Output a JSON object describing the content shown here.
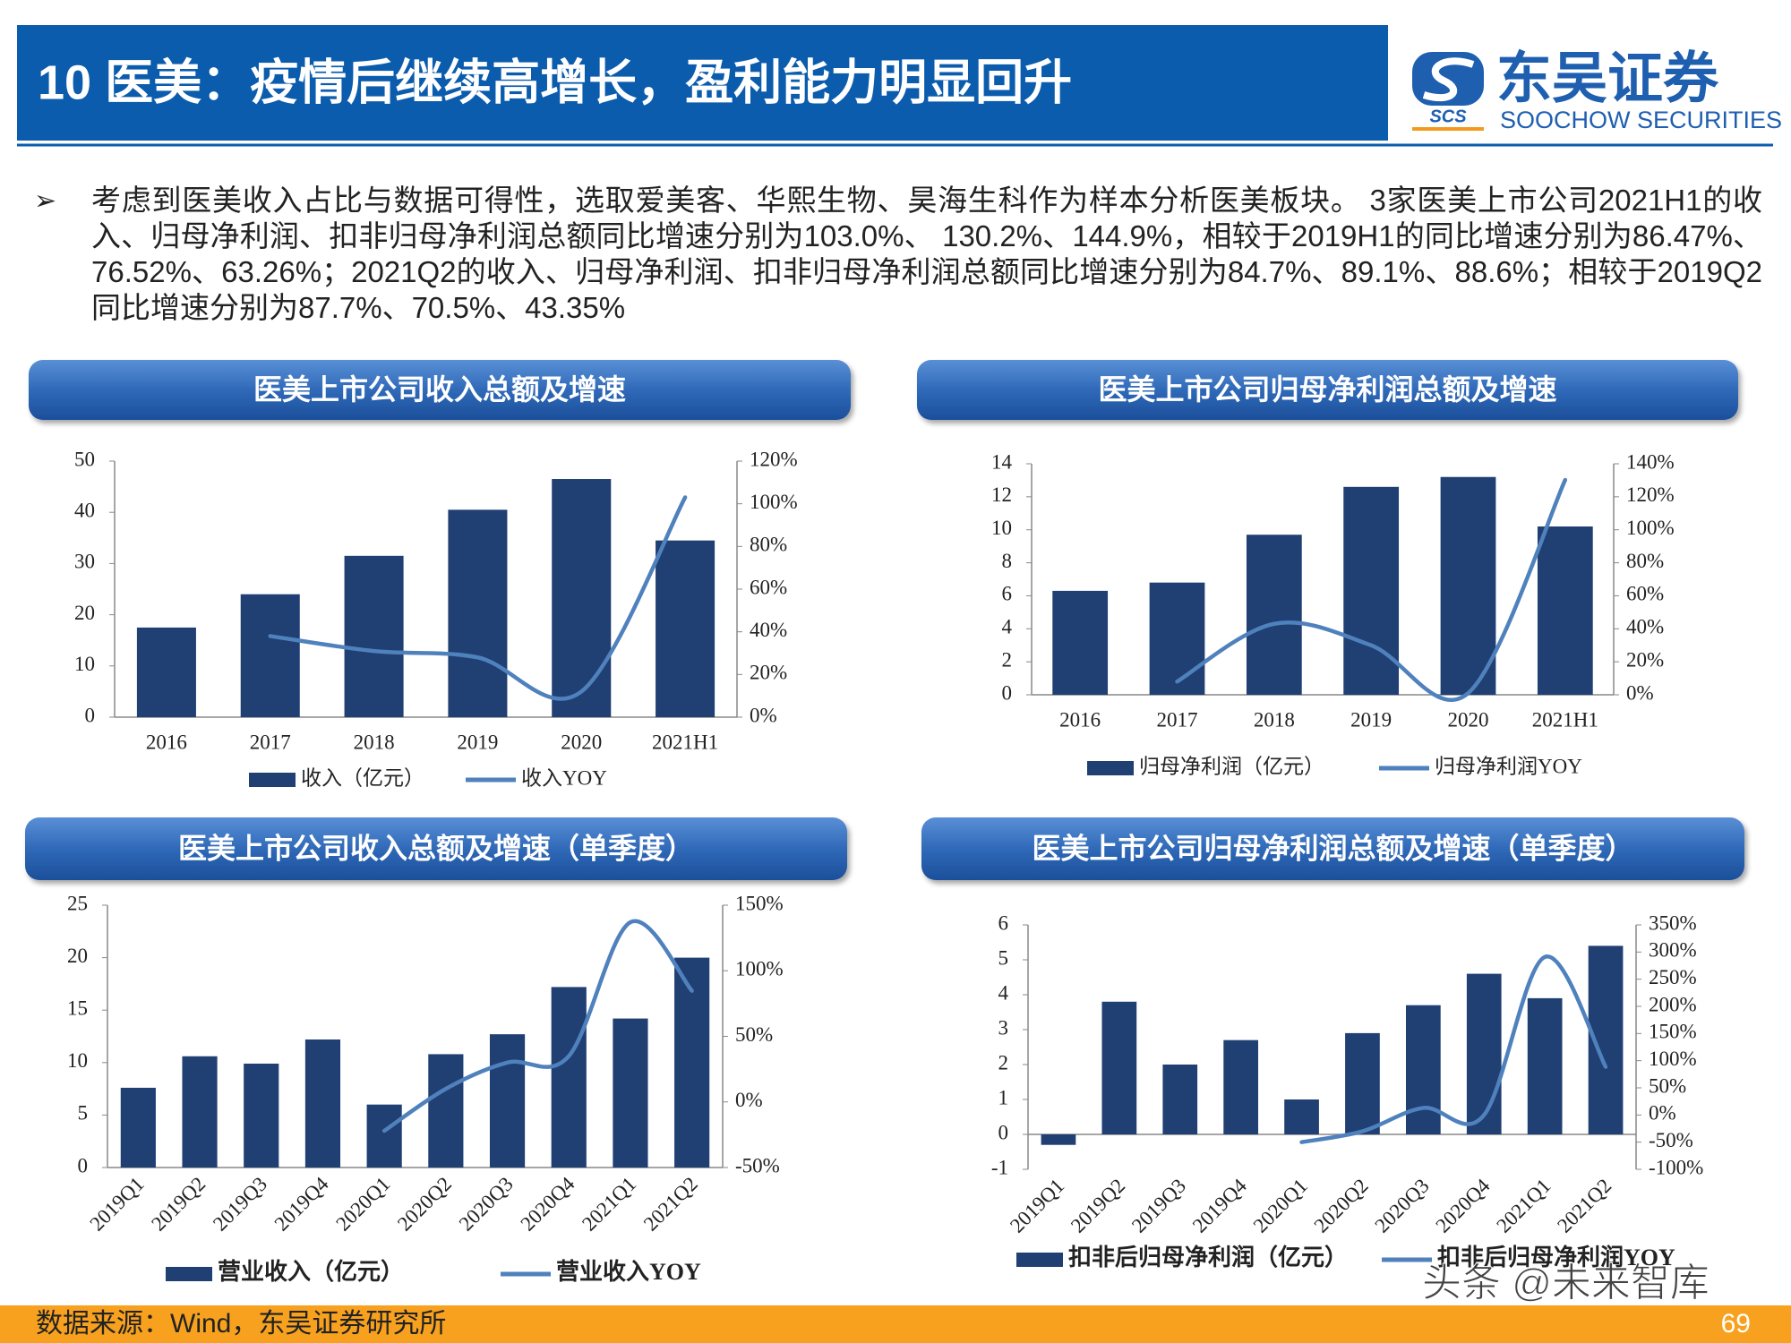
{
  "header": {
    "title": "10 医美：疫情后继续高增长，盈利能力明显回升",
    "logo_cn": "东吴证券",
    "logo_mark": "SCS",
    "logo_en": "SOOCHOW SECURITIES"
  },
  "bullet": "考虑到医美收入占比与数据可得性，选取爱美客、华熙生物、昊海生科作为样本分析医美板块。 3家医美上市公司2021H1的收入、归母净利润、扣非归母净利润总额同比增速分别为103.0%、 130.2%、144.9%，相较于2019H1的同比增速分别为86.47%、76.52%、63.26%；2021Q2的收入、归母净利润、扣非归母净利润总额同比增速分别为84.7%、89.1%、88.6%；相较于2019Q2同比增速分别为87.7%、70.5%、43.35%",
  "chart_data": [
    {
      "type": "bar",
      "title": "医美上市公司收入总额及增速",
      "categories": [
        "2016",
        "2017",
        "2018",
        "2019",
        "2020",
        "2021H1"
      ],
      "series": [
        {
          "name": "收入（亿元）",
          "type": "bar",
          "color": "#203f72",
          "values": [
            17.5,
            24,
            31.5,
            40.5,
            46.5,
            34.5
          ]
        },
        {
          "name": "收入YOY",
          "type": "line",
          "axis": "y2",
          "color": "#4f81bd",
          "values": [
            null,
            38,
            31,
            28,
            12,
            103
          ]
        }
      ],
      "ylim": [
        0,
        50
      ],
      "yticks": [
        0,
        10,
        20,
        30,
        40,
        50
      ],
      "y2lim": [
        0,
        120
      ],
      "y2ticks": [
        {
          "value": 0,
          "label": "0%"
        },
        {
          "value": 20,
          "label": "20%"
        },
        {
          "value": 40,
          "label": "40%"
        },
        {
          "value": 60,
          "label": "60%"
        },
        {
          "value": 80,
          "label": "80%"
        },
        {
          "value": 100,
          "label": "100%"
        },
        {
          "value": 120,
          "label": "120%"
        }
      ],
      "legend": "bottom"
    },
    {
      "type": "bar",
      "title": "医美上市公司归母净利润总额及增速",
      "categories": [
        "2016",
        "2017",
        "2018",
        "2019",
        "2020",
        "2021H1"
      ],
      "series": [
        {
          "name": "归母净利润（亿元）",
          "type": "bar",
          "color": "#203f72",
          "values": [
            6.3,
            6.8,
            9.7,
            12.6,
            13.2,
            10.2
          ]
        },
        {
          "name": "归母净利润YOY",
          "type": "line",
          "axis": "y2",
          "color": "#4f81bd",
          "values": [
            null,
            8,
            43,
            30,
            1,
            130.2
          ]
        }
      ],
      "ylim": [
        0,
        14
      ],
      "yticks": [
        0,
        2,
        4,
        6,
        8,
        10,
        12,
        14
      ],
      "y2lim": [
        0,
        140
      ],
      "y2ticks": [
        {
          "value": 0,
          "label": "0%"
        },
        {
          "value": 20,
          "label": "20%"
        },
        {
          "value": 40,
          "label": "40%"
        },
        {
          "value": 60,
          "label": "60%"
        },
        {
          "value": 80,
          "label": "80%"
        },
        {
          "value": 100,
          "label": "100%"
        },
        {
          "value": 120,
          "label": "120%"
        },
        {
          "value": 140,
          "label": "140%"
        }
      ],
      "legend": "bottom"
    },
    {
      "type": "bar",
      "title": "医美上市公司收入总额及增速（单季度）",
      "categories": [
        "2019Q1",
        "2019Q2",
        "2019Q3",
        "2019Q4",
        "2020Q1",
        "2020Q2",
        "2020Q3",
        "2020Q4",
        "2021Q1",
        "2021Q2"
      ],
      "series": [
        {
          "name": "营业收入（亿元）",
          "type": "bar",
          "color": "#203f72",
          "values": [
            7.6,
            10.6,
            9.9,
            12.2,
            6.0,
            10.8,
            12.7,
            17.2,
            14.2,
            20.0
          ]
        },
        {
          "name": "营业收入YOY",
          "type": "line",
          "axis": "y2",
          "color": "#4f81bd",
          "values": [
            null,
            null,
            null,
            null,
            -22,
            10,
            30,
            35,
            137,
            84.7
          ]
        }
      ],
      "ylim": [
        0,
        25
      ],
      "yticks": [
        0,
        5,
        10,
        15,
        20,
        25
      ],
      "y2lim": [
        -50,
        150
      ],
      "y2ticks": [
        {
          "value": -50,
          "label": "-50%"
        },
        {
          "value": 0,
          "label": "0%"
        },
        {
          "value": 50,
          "label": "50%"
        },
        {
          "value": 100,
          "label": "100%"
        },
        {
          "value": 150,
          "label": "150%"
        }
      ],
      "legend": "bottom"
    },
    {
      "type": "bar",
      "title": "医美上市公司归母净利润总额及增速（单季度）",
      "categories": [
        "2019Q1",
        "2019Q2",
        "2019Q3",
        "2019Q4",
        "2020Q1",
        "2020Q2",
        "2020Q3",
        "2020Q4",
        "2021Q1",
        "2021Q2"
      ],
      "series": [
        {
          "name": "扣非后归母净利润（亿元）",
          "type": "bar",
          "color": "#203f72",
          "values": [
            -0.3,
            3.8,
            2.0,
            2.7,
            1.0,
            2.9,
            3.7,
            4.6,
            3.9,
            5.4
          ]
        },
        {
          "name": "扣非后归母净利润YOY",
          "type": "line",
          "axis": "y2",
          "color": "#4f81bd",
          "values": [
            null,
            null,
            null,
            null,
            -50,
            -30,
            13,
            0,
            291,
            88.6
          ]
        }
      ],
      "ylim": [
        -1,
        6
      ],
      "yticks": [
        -1,
        0,
        1,
        2,
        3,
        4,
        5,
        6
      ],
      "y2lim": [
        -100,
        350
      ],
      "y2ticks": [
        {
          "value": -100,
          "label": "-100%"
        },
        {
          "value": -50,
          "label": "-50%"
        },
        {
          "value": 0,
          "label": "0%"
        },
        {
          "value": 50,
          "label": "50%"
        },
        {
          "value": 100,
          "label": "100%"
        },
        {
          "value": 150,
          "label": "150%"
        },
        {
          "value": 200,
          "label": "200%"
        },
        {
          "value": 250,
          "label": "250%"
        },
        {
          "value": 300,
          "label": "300%"
        },
        {
          "value": 350,
          "label": "350%"
        }
      ],
      "legend": "bottom"
    }
  ],
  "footer": {
    "source": "数据来源：Wind，东吴证券研究所",
    "page": "69"
  },
  "watermark": "头条 @未来智库"
}
